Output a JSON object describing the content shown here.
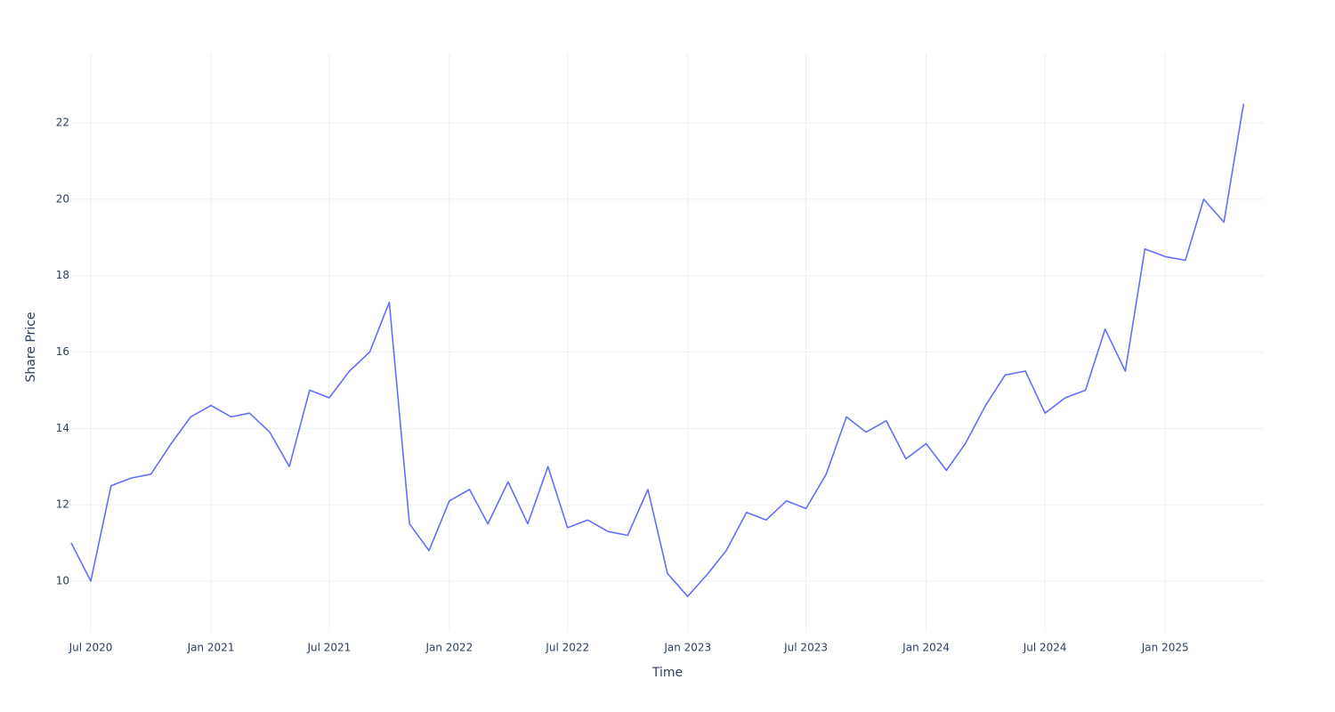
{
  "chart_data": {
    "type": "line",
    "x_label": "Time",
    "y_label": "Share Price",
    "x": [
      "2020-06",
      "2020-07",
      "2020-08",
      "2020-09",
      "2020-10",
      "2020-11",
      "2020-12",
      "2021-01",
      "2021-02",
      "2021-03",
      "2021-04",
      "2021-05",
      "2021-06",
      "2021-07",
      "2021-08",
      "2021-09",
      "2021-10",
      "2021-11",
      "2021-12",
      "2022-01",
      "2022-02",
      "2022-03",
      "2022-04",
      "2022-05",
      "2022-06",
      "2022-07",
      "2022-08",
      "2022-09",
      "2022-10",
      "2022-11",
      "2022-12",
      "2023-01",
      "2023-02",
      "2023-03",
      "2023-04",
      "2023-05",
      "2023-06",
      "2023-07",
      "2023-08",
      "2023-09",
      "2023-10",
      "2023-11",
      "2023-12",
      "2024-01",
      "2024-02",
      "2024-03",
      "2024-04",
      "2024-05",
      "2024-06",
      "2024-07",
      "2024-08",
      "2024-09",
      "2024-10",
      "2024-11",
      "2024-12",
      "2025-01",
      "2025-02",
      "2025-03",
      "2025-04",
      "2025-05"
    ],
    "series": [
      {
        "name": "Share Price",
        "color": "#636efa",
        "values": [
          11.0,
          10.0,
          12.5,
          12.7,
          12.8,
          13.6,
          14.3,
          14.6,
          14.3,
          14.4,
          13.9,
          13.0,
          15.0,
          14.8,
          15.5,
          16.0,
          17.3,
          11.5,
          10.8,
          12.1,
          12.4,
          11.5,
          12.6,
          11.5,
          13.0,
          11.4,
          11.6,
          11.3,
          11.2,
          12.4,
          10.2,
          9.6,
          10.2,
          10.8,
          11.8,
          11.6,
          12.1,
          11.9,
          12.8,
          14.3,
          13.9,
          14.2,
          13.2,
          13.6,
          12.9,
          13.6,
          14.6,
          15.4,
          15.5,
          14.4,
          14.8,
          15.0,
          16.6,
          15.5,
          18.7,
          18.5,
          18.4,
          20.0,
          19.4,
          22.5
        ]
      }
    ],
    "xlim": [
      "2020-06",
      "2025-06"
    ],
    "xticks": [
      {
        "value": "2020-07",
        "label": "Jul 2020"
      },
      {
        "value": "2021-01",
        "label": "Jan 2021"
      },
      {
        "value": "2021-07",
        "label": "Jul 2021"
      },
      {
        "value": "2022-01",
        "label": "Jan 2022"
      },
      {
        "value": "2022-07",
        "label": "Jul 2022"
      },
      {
        "value": "2023-01",
        "label": "Jan 2023"
      },
      {
        "value": "2023-07",
        "label": "Jul 2023"
      },
      {
        "value": "2024-01",
        "label": "Jan 2024"
      },
      {
        "value": "2024-07",
        "label": "Jul 2024"
      },
      {
        "value": "2025-01",
        "label": "Jan 2025"
      }
    ],
    "ylim": [
      8.67,
      23.82
    ],
    "yticks": [
      10,
      12,
      14,
      16,
      18,
      20,
      22
    ],
    "grid": true
  }
}
